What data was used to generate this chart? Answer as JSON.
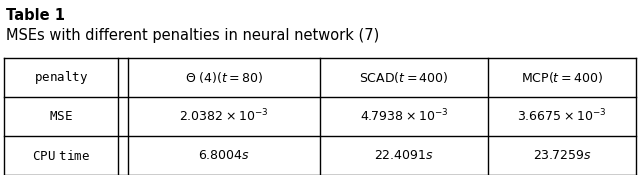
{
  "title_line1": "Table 1",
  "title_line2": "MSEs with different penalties in neural network (7)",
  "col_headers": [
    "penalty",
    "Θ (4)(t = 80)",
    "SCAD(t = 400)",
    "MCP(t = 400)"
  ],
  "rows": [
    [
      "MSE",
      "2.0382 × 10⁻³",
      "4.7938 × 10⁻³",
      "3.6675 × 10⁻³"
    ],
    [
      "CPU time",
      "6.8004s",
      "22.4091s",
      "23.7259s"
    ]
  ],
  "bg_color": "#ffffff",
  "line_color": "#000000",
  "font_size_title1": 10.5,
  "font_size_title2": 10.5,
  "font_size_table": 9.0
}
